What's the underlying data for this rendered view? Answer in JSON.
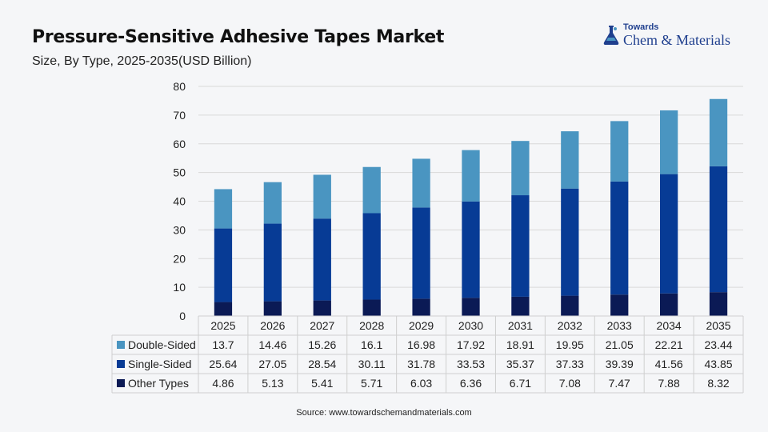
{
  "header": {
    "title": "Pressure-Sensitive Adhesive Tapes Market",
    "subtitle": "Size, By Type, 2025-2035(USD Billion)"
  },
  "logo": {
    "small_text": "Towards",
    "main_text": "Chem & Materials",
    "icon": "flask-icon"
  },
  "source": "Source: www.towardschemandmaterials.com",
  "colors": {
    "double_sided": "#4a95c1",
    "single_sided": "#073b95",
    "other_types": "#0b1a55",
    "grid": "#d9d9d9",
    "brand": "#1f3f8e"
  },
  "chart_data": {
    "type": "bar",
    "stacked": true,
    "categories": [
      "2025",
      "2026",
      "2027",
      "2028",
      "2029",
      "2030",
      "2031",
      "2032",
      "2033",
      "2034",
      "2035"
    ],
    "series": [
      {
        "name": "Double-Sided",
        "color": "#4a95c1",
        "values": [
          "13.7",
          "14.46",
          "15.26",
          "16.1",
          "16.98",
          "17.92",
          "18.91",
          "19.95",
          "21.05",
          "22.21",
          "23.44"
        ]
      },
      {
        "name": "Single-Sided",
        "color": "#073b95",
        "values": [
          "25.64",
          "27.05",
          "28.54",
          "30.11",
          "31.78",
          "33.53",
          "35.37",
          "37.33",
          "39.39",
          "41.56",
          "43.85"
        ]
      },
      {
        "name": "Other Types",
        "color": "#0b1a55",
        "values": [
          "4.86",
          "5.13",
          "5.41",
          "5.71",
          "6.03",
          "6.36",
          "6.71",
          "7.08",
          "7.47",
          "7.88",
          "8.32"
        ]
      }
    ],
    "stack_order_bottom_to_top": [
      "Other Types",
      "Single-Sided",
      "Double-Sided"
    ],
    "ylim": [
      0,
      80
    ],
    "yticks": [
      "0",
      "10",
      "20",
      "30",
      "40",
      "50",
      "60",
      "70",
      "80"
    ],
    "grid": true,
    "legend": "data-table-below",
    "data_table": true
  }
}
